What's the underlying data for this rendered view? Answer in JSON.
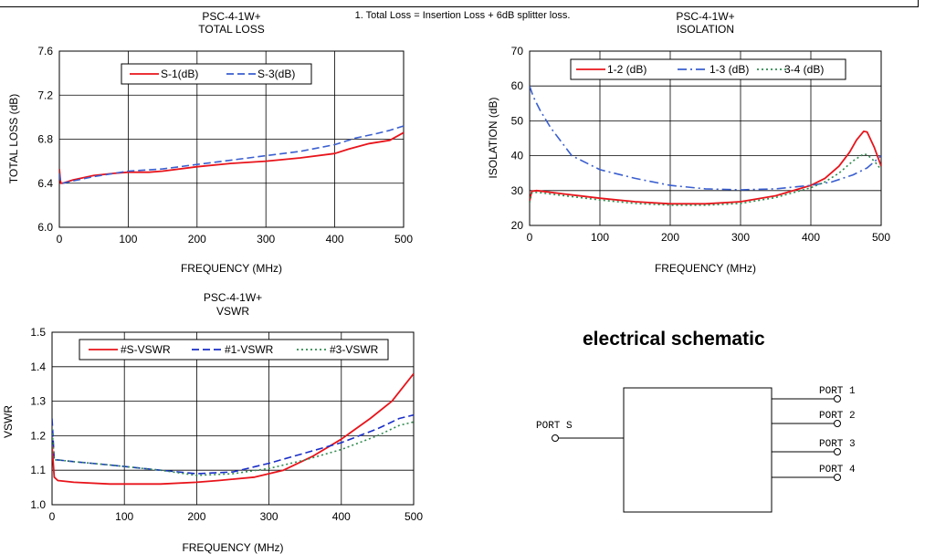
{
  "note": "1. Total Loss = Insertion Loss + 6dB splitter loss.",
  "chart_data": [
    {
      "type": "line",
      "title": "PSC-4-1W+",
      "subtitle": "TOTAL  LOSS",
      "xlabel": "FREQUENCY (MHz)",
      "ylabel": "TOTAL  LOSS (dB)",
      "xlim": [
        0,
        500
      ],
      "ylim": [
        6.0,
        7.6
      ],
      "xticks": [
        0,
        100,
        200,
        300,
        400,
        500
      ],
      "yticks": [
        6.0,
        6.4,
        6.8,
        7.2,
        7.6
      ],
      "xtick_labels": [
        "0",
        "100",
        "200",
        "300",
        "400",
        "500"
      ],
      "ytick_labels": [
        "6.0",
        "6.4",
        "6.8",
        "7.2",
        "7.6"
      ],
      "grid": true,
      "legend": "top-center",
      "series": [
        {
          "name": "S-1(dB)",
          "color": "#e8141b",
          "dash": "solid",
          "x": [
            0,
            2,
            5,
            20,
            50,
            80,
            100,
            130,
            150,
            200,
            250,
            300,
            350,
            400,
            420,
            450,
            480,
            500
          ],
          "y": [
            6.53,
            6.4,
            6.4,
            6.43,
            6.47,
            6.49,
            6.5,
            6.5,
            6.51,
            6.55,
            6.58,
            6.6,
            6.63,
            6.67,
            6.71,
            6.76,
            6.79,
            6.86
          ]
        },
        {
          "name": "S-3(dB)",
          "color": "#3a5fd0",
          "dash": "dash",
          "x": [
            0,
            2,
            5,
            20,
            50,
            80,
            100,
            150,
            200,
            250,
            300,
            350,
            400,
            430,
            460,
            480,
            500
          ],
          "y": [
            6.49,
            6.41,
            6.4,
            6.42,
            6.46,
            6.49,
            6.51,
            6.53,
            6.57,
            6.61,
            6.65,
            6.69,
            6.75,
            6.81,
            6.85,
            6.88,
            6.92
          ]
        }
      ]
    },
    {
      "type": "line",
      "title": "PSC-4-1W+",
      "subtitle": "ISOLATION",
      "xlabel": "FREQUENCY (MHz)",
      "ylabel": "ISOLATION (dB)",
      "xlim": [
        0,
        500
      ],
      "ylim": [
        20,
        70
      ],
      "xticks": [
        0,
        100,
        200,
        300,
        400,
        500
      ],
      "yticks": [
        20,
        30,
        40,
        50,
        60,
        70
      ],
      "xtick_labels": [
        "0",
        "100",
        "200",
        "300",
        "400",
        "500"
      ],
      "ytick_labels": [
        "20",
        "30",
        "40",
        "50",
        "60",
        "70"
      ],
      "grid": true,
      "legend": "top-right",
      "series": [
        {
          "name": "1-2 (dB)",
          "color": "#e8141b",
          "dash": "solid",
          "x": [
            0,
            3,
            10,
            50,
            100,
            150,
            200,
            250,
            300,
            350,
            400,
            420,
            440,
            455,
            465,
            475,
            480,
            490,
            500
          ],
          "y": [
            27,
            29.8,
            30,
            29,
            27.8,
            26.8,
            26.2,
            26.2,
            26.8,
            28.5,
            31.5,
            33.5,
            37,
            41,
            44.5,
            47,
            46.8,
            42.5,
            37
          ]
        },
        {
          "name": "1-3 (dB)",
          "color": "#3a5fd0",
          "dash": "dashdot",
          "x": [
            0,
            5,
            15,
            30,
            60,
            100,
            150,
            200,
            250,
            300,
            350,
            400,
            430,
            460,
            480,
            500
          ],
          "y": [
            60,
            57,
            53,
            48,
            40,
            36,
            33.5,
            31.5,
            30.5,
            30.2,
            30.5,
            31.5,
            32.5,
            34.5,
            36.5,
            40
          ]
        },
        {
          "name": "3-4 (dB)",
          "color": "#2e8b4e",
          "dash": "dot",
          "x": [
            0,
            3,
            10,
            50,
            100,
            150,
            200,
            250,
            300,
            350,
            400,
            420,
            440,
            460,
            475,
            480,
            490,
            500
          ],
          "y": [
            26.5,
            29.3,
            29.5,
            28.5,
            27.3,
            26.3,
            25.8,
            25.8,
            26.3,
            28,
            30.8,
            32.5,
            35,
            38.5,
            40.5,
            40.3,
            38.5,
            36
          ]
        }
      ]
    },
    {
      "type": "line",
      "title": "PSC-4-1W+",
      "subtitle": "VSWR",
      "xlabel": "FREQUENCY (MHz)",
      "ylabel": "VSWR",
      "xlim": [
        0,
        500
      ],
      "ylim": [
        1.0,
        1.5
      ],
      "xticks": [
        0,
        100,
        200,
        300,
        400,
        500
      ],
      "yticks": [
        1.0,
        1.1,
        1.2,
        1.3,
        1.4,
        1.5
      ],
      "xtick_labels": [
        "0",
        "100",
        "200",
        "300",
        "400",
        "500"
      ],
      "ytick_labels": [
        "1.0",
        "1.1",
        "1.2",
        "1.3",
        "1.4",
        "1.5"
      ],
      "grid": true,
      "legend": "top-center",
      "series": [
        {
          "name": "#S-VSWR",
          "color": "#e8141b",
          "dash": "solid",
          "x": [
            0,
            3,
            8,
            30,
            80,
            150,
            200,
            230,
            280,
            320,
            360,
            400,
            440,
            470,
            500
          ],
          "y": [
            1.17,
            1.08,
            1.07,
            1.065,
            1.06,
            1.06,
            1.065,
            1.07,
            1.08,
            1.1,
            1.14,
            1.19,
            1.25,
            1.3,
            1.38
          ]
        },
        {
          "name": "#1-VSWR",
          "color": "#1a2fc8",
          "dash": "dash",
          "x": [
            0,
            3,
            8,
            30,
            80,
            150,
            200,
            250,
            300,
            350,
            400,
            450,
            480,
            500
          ],
          "y": [
            1.25,
            1.13,
            1.13,
            1.125,
            1.115,
            1.1,
            1.09,
            1.095,
            1.12,
            1.15,
            1.18,
            1.22,
            1.25,
            1.26
          ]
        },
        {
          "name": "#3-VSWR",
          "color": "#2e8b4e",
          "dash": "dot",
          "x": [
            0,
            3,
            8,
            30,
            80,
            150,
            200,
            250,
            300,
            350,
            400,
            450,
            480,
            500
          ],
          "y": [
            1.22,
            1.13,
            1.13,
            1.125,
            1.115,
            1.1,
            1.085,
            1.09,
            1.105,
            1.13,
            1.16,
            1.2,
            1.23,
            1.24
          ]
        }
      ]
    }
  ],
  "schematic": {
    "title": "electrical schematic",
    "input_port": "PORT S",
    "output_ports": [
      "PORT 1",
      "PORT 2",
      "PORT 3",
      "PORT 4"
    ]
  }
}
